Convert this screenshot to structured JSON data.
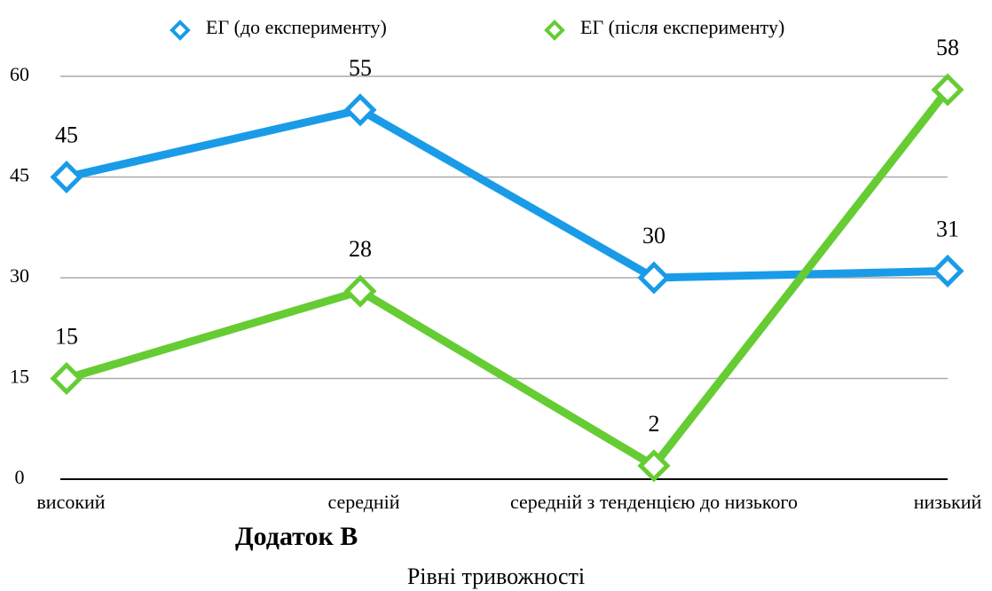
{
  "chart_data": {
    "type": "line",
    "categories": [
      "високий",
      "середній",
      "середній з тенденцією до низького",
      "низький"
    ],
    "series": [
      {
        "name": "ЕГ (до експерименту)",
        "color": "#1a9be8",
        "values": [
          45,
          55,
          30,
          31
        ]
      },
      {
        "name": "ЕГ (після експерименту)",
        "color": "#66cc33",
        "values": [
          15,
          28,
          2,
          58
        ]
      }
    ],
    "ylim": [
      0,
      60
    ],
    "yticks": [
      0,
      15,
      30,
      45,
      60
    ],
    "grid": true,
    "legend": "top",
    "annotation": "Додаток В",
    "x_label": "Рівні тривожності"
  }
}
